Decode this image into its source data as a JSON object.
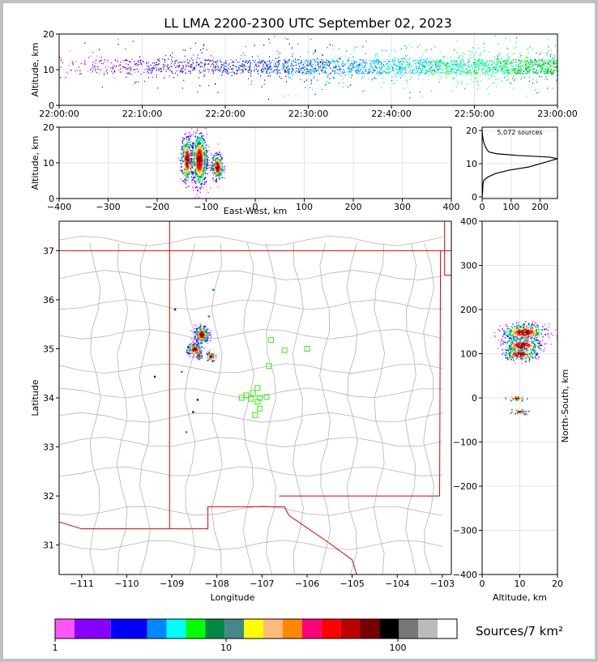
{
  "title": "LL LMA 2200-2300 UTC September 02, 2023",
  "chart_data": [
    {
      "id": "time-height",
      "type": "scatter",
      "ylabel": "Altitude, km",
      "ylim": [
        0,
        20
      ],
      "yticks": [
        "0",
        "10",
        "20"
      ],
      "xticks": [
        "22:00:00",
        "22:10:00",
        "22:20:00",
        "22:30:00",
        "22:40:00",
        "22:50:00",
        "23:00:00"
      ],
      "xlim_min": [
        0,
        60
      ],
      "core_altitude_km": [
        9,
        13
      ]
    },
    {
      "id": "ew-height",
      "type": "scatter",
      "xlabel": "East-West, km",
      "ylabel": "Altitude, km",
      "xlim": [
        -400,
        400
      ],
      "ylim": [
        0,
        20
      ],
      "xticks": [
        "−400",
        "−300",
        "−200",
        "−100",
        "0",
        "100",
        "200",
        "300",
        "400"
      ],
      "yticks": [
        "0",
        "10",
        "20"
      ],
      "clusters": [
        {
          "x": -140,
          "y": 11,
          "sx": 6,
          "sy": 3.2,
          "n": 340
        },
        {
          "x": -115,
          "y": 11,
          "sx": 8,
          "sy": 3.6,
          "n": 700
        },
        {
          "x": -78,
          "y": 9,
          "sx": 6,
          "sy": 1.8,
          "n": 260
        }
      ]
    },
    {
      "id": "altitude-histogram",
      "type": "line",
      "annotation": "5,072 sources",
      "xlim": [
        0,
        260
      ],
      "ylim": [
        -0.5,
        21
      ],
      "xticks": [
        "0",
        "100",
        "200"
      ],
      "yticks": [
        "0",
        "10",
        "20"
      ],
      "profile": [
        [
          0.0,
          0
        ],
        [
          2,
          2
        ],
        [
          3,
          4
        ],
        [
          6,
          5
        ],
        [
          20,
          6
        ],
        [
          45,
          7
        ],
        [
          90,
          8
        ],
        [
          160,
          9
        ],
        [
          200,
          10
        ],
        [
          240,
          11
        ],
        [
          270,
          11.5
        ],
        [
          230,
          12
        ],
        [
          120,
          12.5
        ],
        [
          50,
          13
        ],
        [
          25,
          13.5
        ],
        [
          18,
          14
        ],
        [
          12,
          15
        ],
        [
          7,
          16
        ],
        [
          4,
          17
        ],
        [
          2,
          18
        ],
        [
          1,
          19
        ],
        [
          0,
          20
        ]
      ]
    },
    {
      "id": "plan-view",
      "type": "scatter",
      "xlabel": "Longitude",
      "ylabel": "Latitude",
      "xlim": [
        -111.5,
        -102.8
      ],
      "ylim": [
        30.4,
        37.6
      ],
      "xticks": [
        "−111",
        "−110",
        "−109",
        "−108",
        "−107",
        "−106",
        "−105",
        "−104",
        "−103"
      ],
      "yticks": [
        "31",
        "32",
        "33",
        "34",
        "35",
        "36",
        "37"
      ],
      "clusters": [
        {
          "x": -108.35,
          "y": 35.3,
          "sx": 0.08,
          "sy": 0.09,
          "n": 260
        },
        {
          "x": -108.5,
          "y": 35.0,
          "sx": 0.09,
          "sy": 0.06,
          "n": 130
        },
        {
          "x": -108.15,
          "y": 34.85,
          "sx": 0.05,
          "sy": 0.05,
          "n": 70
        },
        {
          "x": -108.42,
          "y": 34.88,
          "sx": 0.04,
          "sy": 0.04,
          "n": 50
        }
      ],
      "isolated_points": [
        [
          -108.1,
          36.22
        ],
        [
          -108.2,
          35.68
        ],
        [
          -108.45,
          33.98
        ],
        [
          -108.55,
          33.73
        ],
        [
          -109.4,
          34.45
        ],
        [
          -108.8,
          34.55
        ],
        [
          -108.7,
          33.32
        ],
        [
          -108.95,
          35.82
        ]
      ],
      "stations": [
        [
          -106.8,
          35.18
        ],
        [
          -106.5,
          34.97
        ],
        [
          -106.0,
          35.0
        ],
        [
          -106.85,
          34.65
        ],
        [
          -107.1,
          34.2
        ],
        [
          -107.2,
          34.1
        ],
        [
          -107.35,
          34.05
        ],
        [
          -107.45,
          34.0
        ],
        [
          -107.25,
          33.98
        ],
        [
          -107.05,
          34.0
        ],
        [
          -106.9,
          34.02
        ],
        [
          -107.1,
          33.92
        ],
        [
          -107.05,
          33.78
        ],
        [
          -107.15,
          33.65
        ]
      ]
    },
    {
      "id": "ns-height",
      "type": "scatter",
      "xlabel": "Altitude, km",
      "ylabel": "North-South, km",
      "xlim": [
        0,
        20
      ],
      "ylim": [
        -400,
        400
      ],
      "xticks": [
        "0",
        "10",
        "20"
      ],
      "yticks": [
        "400",
        "300",
        "200",
        "100",
        "0",
        "−100",
        "−200",
        "−300",
        "−400"
      ],
      "clusters": [
        {
          "x": 11,
          "y": 150,
          "sx": 2.8,
          "sy": 9,
          "n": 420
        },
        {
          "x": 10.5,
          "y": 120,
          "sx": 2.5,
          "sy": 9,
          "n": 300
        },
        {
          "x": 10,
          "y": 100,
          "sx": 2.2,
          "sy": 7,
          "n": 200
        },
        {
          "x": 9,
          "y": 0,
          "sx": 1.2,
          "sy": 3,
          "n": 40
        },
        {
          "x": 10,
          "y": -30,
          "sx": 1.2,
          "sy": 3,
          "n": 40
        }
      ]
    }
  ],
  "colorbar": {
    "label": "Sources/7 km²",
    "ticks": [
      "1",
      "10",
      "100"
    ],
    "colors": [
      "#ff55ff",
      "#8800ff",
      "#0000ff",
      "#0088ff",
      "#00ffff",
      "#00ff00",
      "#008844",
      "#448888",
      "#ffff00",
      "#ffbb77",
      "#ff8800",
      "#ff0077",
      "#ff0000",
      "#bb0000",
      "#770000",
      "#000000",
      "#777777",
      "#bbbbbb",
      "#ffffff"
    ]
  }
}
